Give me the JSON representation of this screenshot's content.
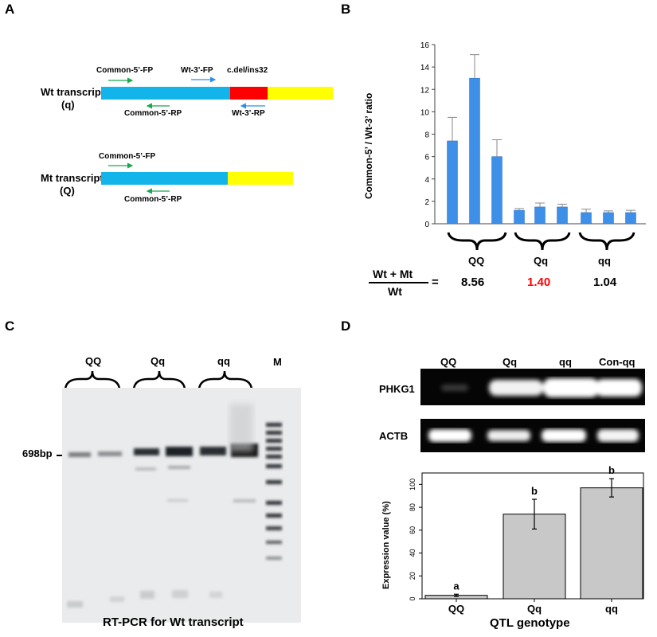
{
  "panels": {
    "a": "A",
    "b": "B",
    "c": "C",
    "d": "D"
  },
  "panel_a": {
    "wt_title_1": "Wt transcript",
    "wt_title_2": "(q)",
    "mt_title_1": "Mt transcript",
    "mt_title_2": "(Q)",
    "primers": {
      "common_fp": "Common-5’-FP",
      "wt_fp": "Wt-3’-FP",
      "del": "c.del/ins32",
      "common_rp": "Common-5’-RP",
      "wt_rp": "Wt-3’-RP"
    },
    "colors": {
      "blue": "#12b4ea",
      "red": "#ff0000",
      "yellow": "#ffff00",
      "green_arrow": "#19a84c",
      "blue_arrow": "#2b8fe8"
    }
  },
  "panel_b": {
    "groups": [
      "QQ",
      "Qq",
      "qq"
    ],
    "formula_numerator": "Wt + Mt",
    "formula_denominator": "Wt",
    "equals": "=",
    "ratios": [
      "8.56",
      "1.40",
      "1.04"
    ],
    "ratio_highlight_color": "#ff0000"
  },
  "panel_c": {
    "groups": [
      "QQ",
      "Qq",
      "qq"
    ],
    "marker": "M",
    "band_label": "698bp",
    "caption": "RT-PCR for Wt transcript"
  },
  "panel_d": {
    "lanes": [
      "QQ",
      "Qq",
      "qq",
      "Con-qq"
    ],
    "gene_1": "PHKG1",
    "gene_2": "ACTB"
  },
  "chart_data": [
    {
      "type": "bar",
      "ylabel": "Common-5’ / Wt-3’ ratio",
      "xlabel": "",
      "ylim": [
        0,
        16
      ],
      "yticks": [
        0,
        2,
        4,
        6,
        8,
        10,
        12,
        14,
        16
      ],
      "values": [
        7.4,
        13.0,
        6.0,
        1.2,
        1.5,
        1.5,
        1.0,
        1.0,
        1.0
      ],
      "errors": [
        2.1,
        2.1,
        1.5,
        0.15,
        0.35,
        0.25,
        0.3,
        0.15,
        0.2
      ],
      "bar_color": "#3d8fe8",
      "grid": false
    },
    {
      "type": "bar",
      "categories": [
        "QQ",
        "Qq",
        "qq"
      ],
      "values": [
        3,
        74,
        97
      ],
      "errors": [
        1,
        13,
        8
      ],
      "letters": [
        "a",
        "b",
        "b"
      ],
      "ylabel": "Expression value (%)",
      "xlabel": "QTL genotype",
      "ylim": [
        0,
        110
      ],
      "yticks": [
        0,
        20,
        40,
        60,
        80,
        100
      ],
      "bar_color": "#c8c8c8",
      "grid": false
    }
  ]
}
